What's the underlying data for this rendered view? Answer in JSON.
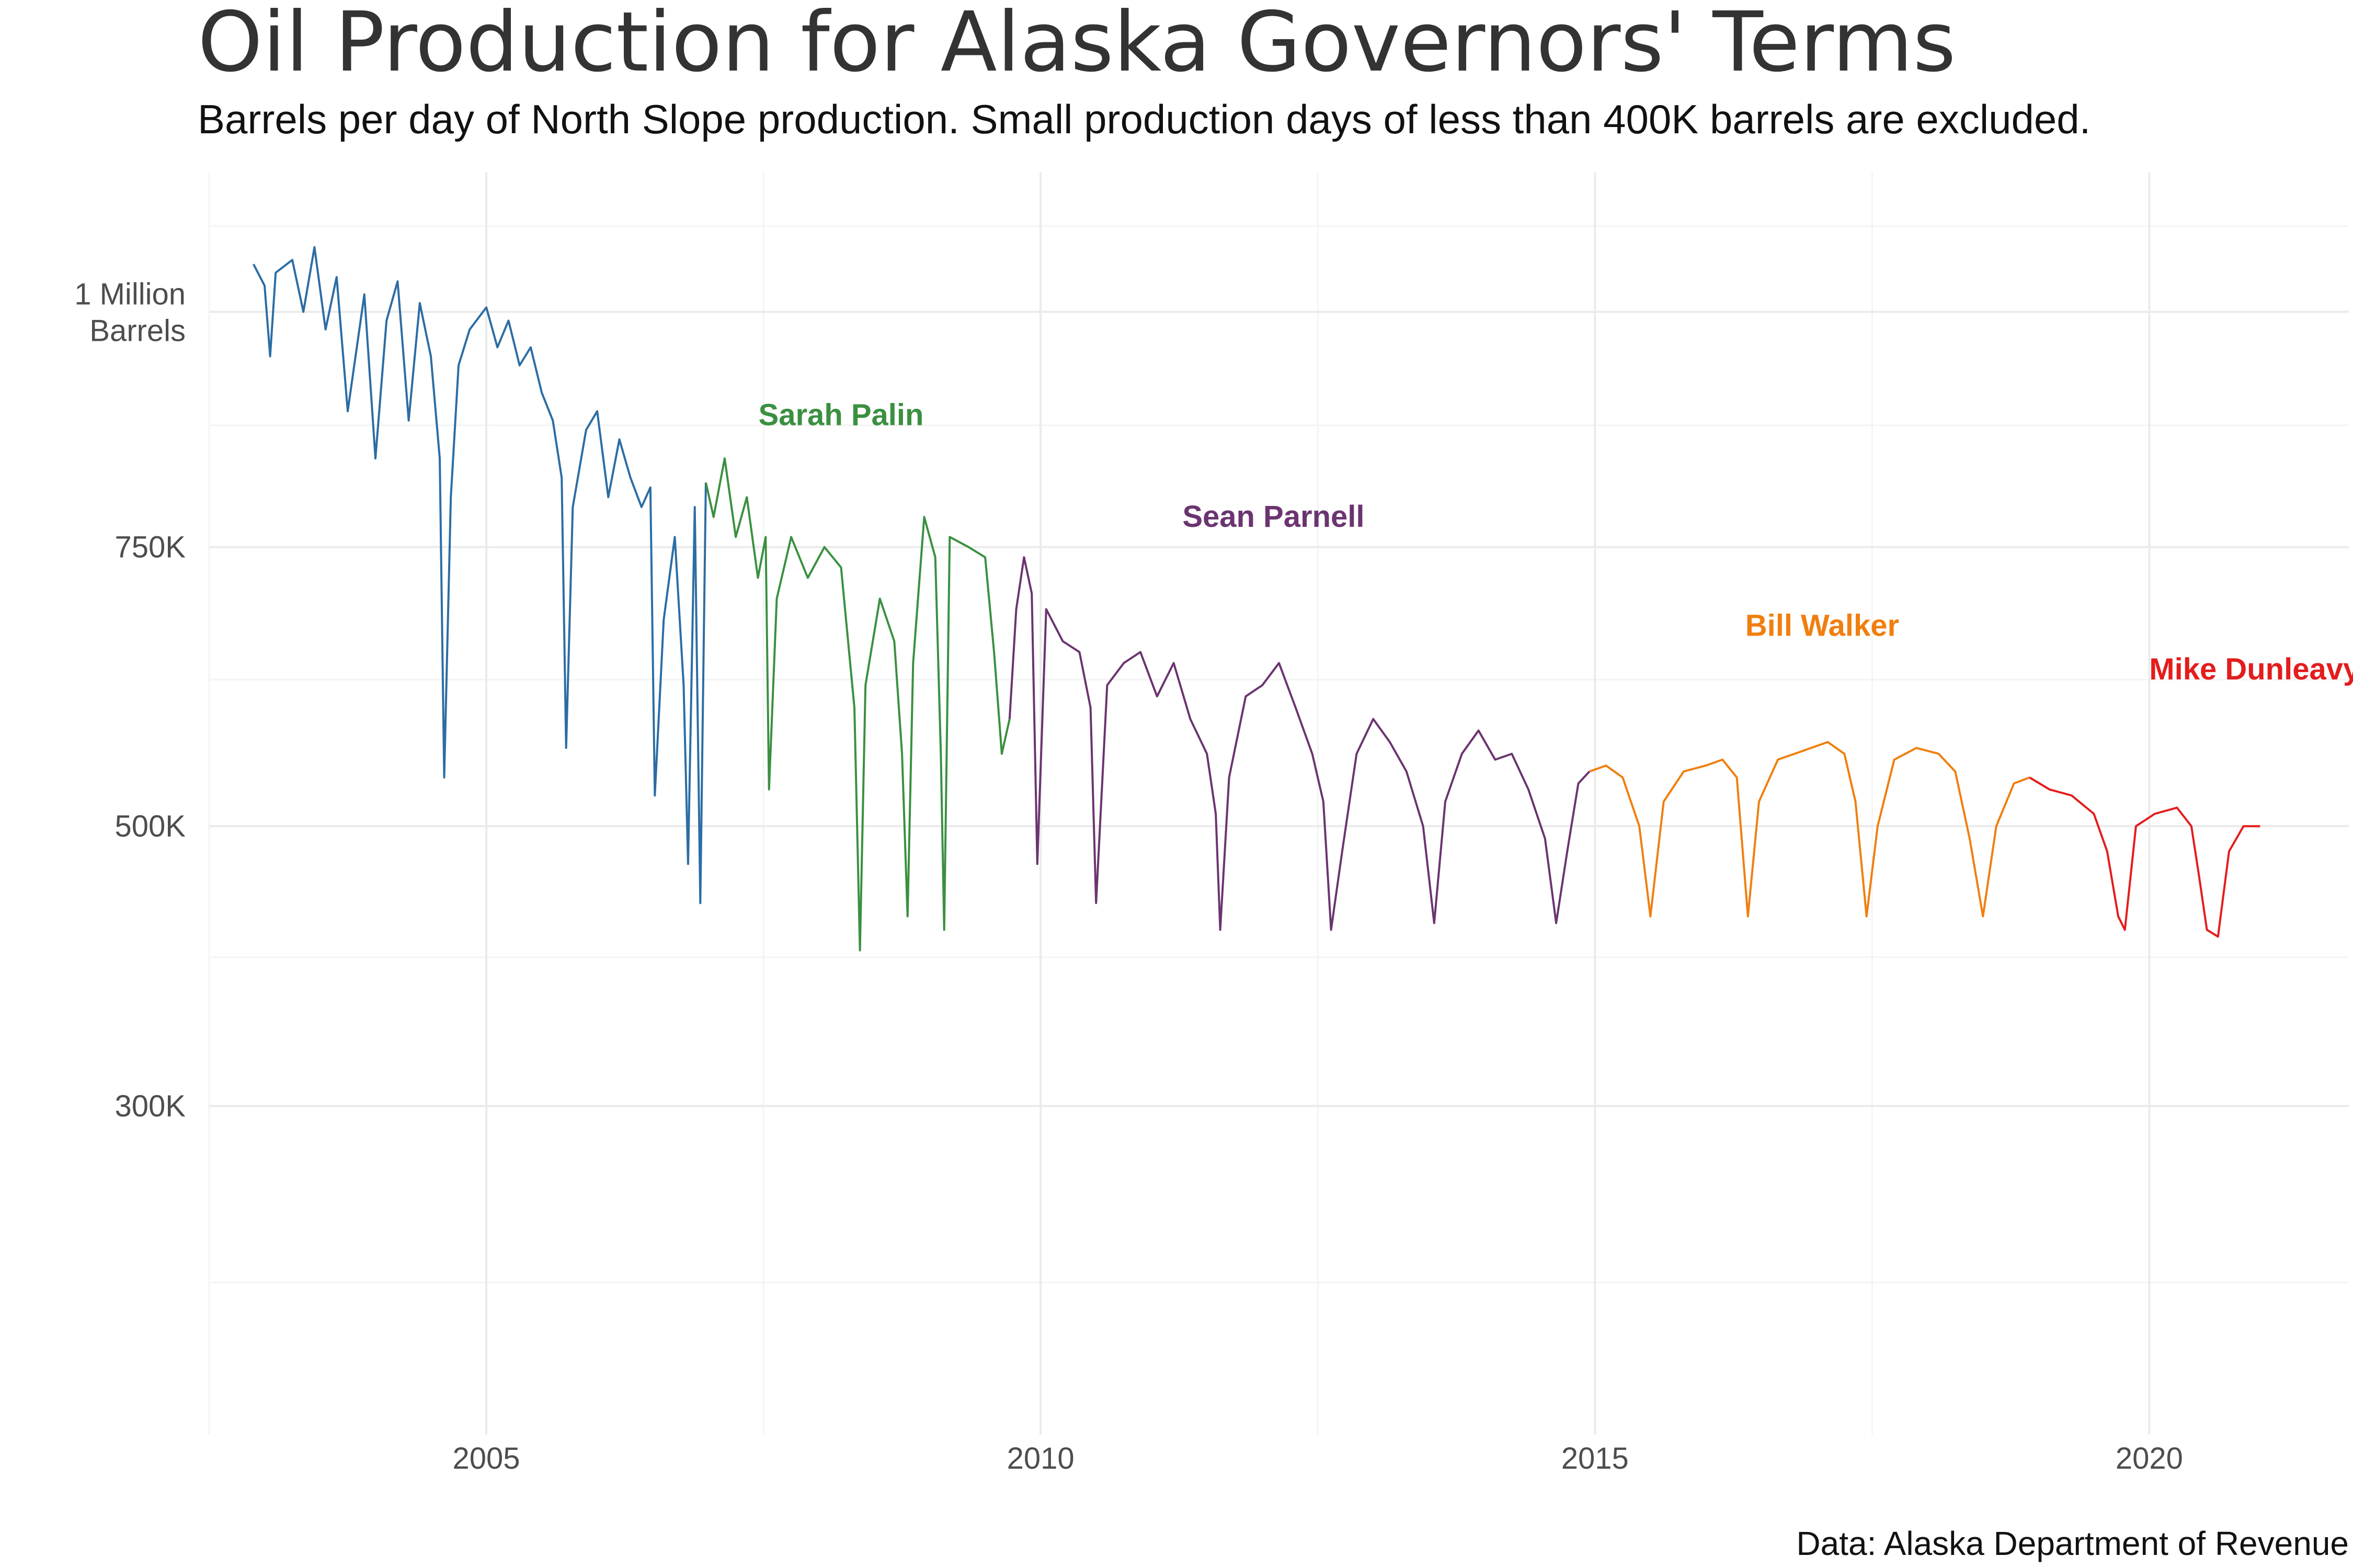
{
  "chart_data": {
    "type": "line",
    "title": "Oil Production for Alaska Governors' Terms",
    "subtitle": "Barrels per day of North Slope production. Small production days of less than 400K barrels are excluded.",
    "caption": "Data: Alaska Department of Revenue",
    "xlabel": "",
    "ylabel": "",
    "x_range": [
      2002.5,
      2021.8
    ],
    "y_range": [
      130000,
      1165000
    ],
    "x_ticks": [
      {
        "value": 2005,
        "label": "2005"
      },
      {
        "value": 2010,
        "label": "2010"
      },
      {
        "value": 2015,
        "label": "2015"
      },
      {
        "value": 2020,
        "label": "2020"
      }
    ],
    "y_ticks": [
      {
        "value": 300000,
        "label": "300K"
      },
      {
        "value": 500000,
        "label": "500K"
      },
      {
        "value": 750000,
        "label": "750K"
      },
      {
        "value": 1000000,
        "label": "1 Million",
        "label2": "Barrels"
      }
    ],
    "y_minor_grid": [
      200000,
      400000,
      625000,
      875000,
      1100000
    ],
    "x_minor_grid": [
      2002.5,
      2007.5,
      2012.5,
      2017.5
    ],
    "grid": true,
    "legend": "none",
    "series": [
      {
        "color": "#2c6da4",
        "points": [
          [
            2002.9,
            1055000
          ],
          [
            2003.0,
            1030000
          ],
          [
            2003.05,
            950000
          ],
          [
            2003.1,
            1045000
          ],
          [
            2003.25,
            1060000
          ],
          [
            2003.35,
            1000000
          ],
          [
            2003.45,
            1075000
          ],
          [
            2003.55,
            980000
          ],
          [
            2003.65,
            1040000
          ],
          [
            2003.75,
            890000
          ],
          [
            2003.9,
            1020000
          ],
          [
            2004.0,
            840000
          ],
          [
            2004.1,
            990000
          ],
          [
            2004.2,
            1035000
          ],
          [
            2004.3,
            880000
          ],
          [
            2004.4,
            1010000
          ],
          [
            2004.5,
            950000
          ],
          [
            2004.58,
            840000
          ],
          [
            2004.62,
            540000
          ],
          [
            2004.68,
            800000
          ],
          [
            2004.75,
            940000
          ],
          [
            2004.85,
            980000
          ],
          [
            2005.0,
            1005000
          ],
          [
            2005.1,
            960000
          ],
          [
            2005.2,
            990000
          ],
          [
            2005.3,
            940000
          ],
          [
            2005.4,
            960000
          ],
          [
            2005.5,
            910000
          ],
          [
            2005.6,
            880000
          ],
          [
            2005.68,
            820000
          ],
          [
            2005.72,
            565000
          ],
          [
            2005.78,
            790000
          ],
          [
            2005.9,
            870000
          ],
          [
            2006.0,
            890000
          ],
          [
            2006.1,
            800000
          ],
          [
            2006.2,
            860000
          ],
          [
            2006.3,
            820000
          ],
          [
            2006.4,
            790000
          ],
          [
            2006.48,
            810000
          ],
          [
            2006.52,
            525000
          ],
          [
            2006.6,
            680000
          ],
          [
            2006.7,
            760000
          ],
          [
            2006.78,
            620000
          ],
          [
            2006.82,
            470000
          ],
          [
            2006.88,
            790000
          ],
          [
            2006.93,
            440000
          ],
          [
            2006.98,
            815000
          ]
        ]
      },
      {
        "color": "#3a9040",
        "points": [
          [
            2006.98,
            815000
          ],
          [
            2007.05,
            780000
          ],
          [
            2007.15,
            840000
          ],
          [
            2007.25,
            760000
          ],
          [
            2007.35,
            800000
          ],
          [
            2007.45,
            720000
          ],
          [
            2007.52,
            760000
          ],
          [
            2007.55,
            530000
          ],
          [
            2007.62,
            700000
          ],
          [
            2007.75,
            760000
          ],
          [
            2007.9,
            720000
          ],
          [
            2008.05,
            750000
          ],
          [
            2008.2,
            730000
          ],
          [
            2008.32,
            600000
          ],
          [
            2008.37,
            405000
          ],
          [
            2008.42,
            620000
          ],
          [
            2008.55,
            700000
          ],
          [
            2008.68,
            660000
          ],
          [
            2008.75,
            560000
          ],
          [
            2008.8,
            430000
          ],
          [
            2008.85,
            640000
          ],
          [
            2008.95,
            780000
          ],
          [
            2009.05,
            740000
          ],
          [
            2009.1,
            560000
          ],
          [
            2009.13,
            420000
          ],
          [
            2009.18,
            760000
          ],
          [
            2009.35,
            750000
          ],
          [
            2009.5,
            740000
          ],
          [
            2009.58,
            650000
          ],
          [
            2009.65,
            560000
          ],
          [
            2009.72,
            590000
          ]
        ]
      },
      {
        "color": "#6b3470",
        "points": [
          [
            2009.72,
            590000
          ],
          [
            2009.78,
            690000
          ],
          [
            2009.85,
            740000
          ],
          [
            2009.92,
            705000
          ],
          [
            2009.97,
            470000
          ],
          [
            2010.05,
            690000
          ],
          [
            2010.2,
            660000
          ],
          [
            2010.35,
            650000
          ],
          [
            2010.45,
            600000
          ],
          [
            2010.5,
            440000
          ],
          [
            2010.6,
            620000
          ],
          [
            2010.75,
            640000
          ],
          [
            2010.9,
            650000
          ],
          [
            2011.05,
            610000
          ],
          [
            2011.2,
            640000
          ],
          [
            2011.35,
            590000
          ],
          [
            2011.5,
            560000
          ],
          [
            2011.58,
            510000
          ],
          [
            2011.62,
            420000
          ],
          [
            2011.7,
            540000
          ],
          [
            2011.85,
            610000
          ],
          [
            2012.0,
            620000
          ],
          [
            2012.15,
            640000
          ],
          [
            2012.3,
            600000
          ],
          [
            2012.45,
            560000
          ],
          [
            2012.55,
            520000
          ],
          [
            2012.62,
            420000
          ],
          [
            2012.72,
            480000
          ],
          [
            2012.85,
            560000
          ],
          [
            2013.0,
            590000
          ],
          [
            2013.15,
            570000
          ],
          [
            2013.3,
            545000
          ],
          [
            2013.45,
            500000
          ],
          [
            2013.55,
            425000
          ],
          [
            2013.65,
            520000
          ],
          [
            2013.8,
            560000
          ],
          [
            2013.95,
            580000
          ],
          [
            2014.1,
            555000
          ],
          [
            2014.25,
            560000
          ],
          [
            2014.4,
            530000
          ],
          [
            2014.55,
            490000
          ],
          [
            2014.65,
            425000
          ],
          [
            2014.75,
            480000
          ],
          [
            2014.85,
            535000
          ],
          [
            2014.95,
            545000
          ]
        ]
      },
      {
        "color": "#f07f0f",
        "points": [
          [
            2014.95,
            545000
          ],
          [
            2015.1,
            550000
          ],
          [
            2015.25,
            540000
          ],
          [
            2015.4,
            500000
          ],
          [
            2015.5,
            430000
          ],
          [
            2015.62,
            520000
          ],
          [
            2015.8,
            545000
          ],
          [
            2016.0,
            550000
          ],
          [
            2016.15,
            555000
          ],
          [
            2016.28,
            540000
          ],
          [
            2016.38,
            430000
          ],
          [
            2016.48,
            520000
          ],
          [
            2016.65,
            555000
          ],
          [
            2016.8,
            560000
          ],
          [
            2016.95,
            565000
          ],
          [
            2017.1,
            570000
          ],
          [
            2017.25,
            560000
          ],
          [
            2017.35,
            520000
          ],
          [
            2017.45,
            430000
          ],
          [
            2017.55,
            500000
          ],
          [
            2017.7,
            555000
          ],
          [
            2017.9,
            565000
          ],
          [
            2018.1,
            560000
          ],
          [
            2018.25,
            545000
          ],
          [
            2018.38,
            490000
          ],
          [
            2018.5,
            430000
          ],
          [
            2018.62,
            500000
          ],
          [
            2018.78,
            535000
          ],
          [
            2018.92,
            540000
          ]
        ]
      },
      {
        "color": "#e31d1d",
        "points": [
          [
            2018.92,
            540000
          ],
          [
            2019.1,
            530000
          ],
          [
            2019.3,
            525000
          ],
          [
            2019.5,
            510000
          ],
          [
            2019.62,
            480000
          ],
          [
            2019.72,
            430000
          ],
          [
            2019.78,
            420000
          ],
          [
            2019.88,
            500000
          ],
          [
            2020.05,
            510000
          ],
          [
            2020.25,
            515000
          ],
          [
            2020.38,
            500000
          ],
          [
            2020.45,
            460000
          ],
          [
            2020.52,
            420000
          ],
          [
            2020.62,
            415000
          ],
          [
            2020.72,
            480000
          ],
          [
            2020.85,
            500000
          ],
          [
            2021.0,
            500000
          ]
        ]
      }
    ],
    "annotations": [
      {
        "text": "Sarah Palin",
        "color": "#3a9040",
        "x": 2008.2,
        "y": 875000
      },
      {
        "text": "Sean Parnell",
        "color": "#6b3470",
        "x": 2012.1,
        "y": 770000
      },
      {
        "text": "Bill Walker",
        "color": "#f07f0f",
        "x": 2017.05,
        "y": 665000
      },
      {
        "text": "Mike Dunleavy",
        "color": "#e31d1d",
        "x": 2020.95,
        "y": 625000
      }
    ]
  }
}
